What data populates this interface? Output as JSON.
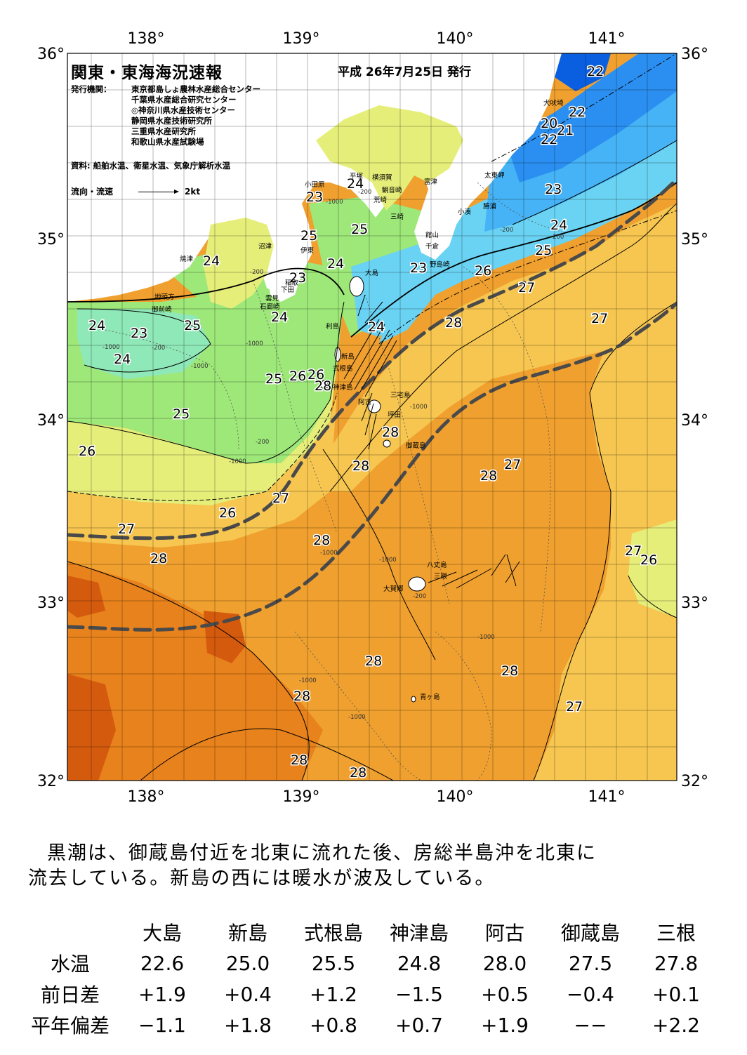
{
  "report": {
    "title": "関東・東海海況速報",
    "date": "平成 26年7月25日 発行",
    "publisher_heading": "発行機関：",
    "publishers": [
      "東京都島しょ農林水産総合センター",
      "千葉県水産総合研究センター",
      "◎神奈川県水産技術センター",
      "静岡県水産技術研究所",
      "三重県水産研究所",
      "和歌山県水産試験場"
    ],
    "source": "資料: 船舶水温、衛星水温、気象庁解析水温",
    "flow_legend_label": "流向・流速",
    "flow_legend_scale": "2kt"
  },
  "axes": {
    "lon_labels": [
      "138°",
      "139°",
      "140°",
      "141°"
    ],
    "lat_labels": [
      "36°",
      "35°",
      "34°",
      "33°",
      "32°"
    ]
  },
  "map_labels": {
    "temperatures": [
      "22",
      "22",
      "20",
      "21",
      "22",
      "23",
      "24",
      "25",
      "23",
      "24",
      "25",
      "23",
      "25",
      "24",
      "23",
      "24",
      "26",
      "27",
      "28",
      "27",
      "24",
      "23",
      "25",
      "24",
      "24",
      "26",
      "26",
      "25",
      "24",
      "25",
      "26",
      "27",
      "28",
      "28",
      "27",
      "28",
      "27",
      "26",
      "28",
      "28",
      "27",
      "26",
      "28",
      "28",
      "28",
      "28",
      "27",
      "28",
      "28"
    ],
    "places": [
      "犬吠埼",
      "太東岬",
      "勝浦",
      "小湊",
      "富津",
      "横須賀",
      "観音崎",
      "荒崎",
      "三崎",
      "館山",
      "千倉",
      "野島崎",
      "小田原",
      "平塚",
      "沼津",
      "伊東",
      "焼津",
      "稲取",
      "下田",
      "雲見",
      "石廊崎",
      "地頭方",
      "御前崎",
      "大島",
      "利島",
      "新島",
      "式根島",
      "神津島",
      "三宅島",
      "坪田",
      "阿古",
      "御蔵島",
      "八丈島",
      "大賀郷",
      "三根",
      "青ヶ島"
    ],
    "depths": [
      "-200",
      "-1000",
      "-1000",
      "-200",
      "-200",
      "-1000",
      "-200",
      "-1000",
      "-1000",
      "-1000",
      "-1000",
      "-1000",
      "-1000",
      "-200",
      "-1000",
      "-200",
      "-1000",
      "-200"
    ]
  },
  "colors": {
    "t20": "#0a5fe0",
    "t21": "#2a8ff0",
    "t22": "#45b3f5",
    "t23": "#6ad3f3",
    "t24": "#8fe8b8",
    "t25": "#9ee87a",
    "t26": "#e6ee7a",
    "t27": "#f6c650",
    "t28": "#f0a02f",
    "t29": "#e8821c",
    "t30": "#d45a0e",
    "land": "#ffffff",
    "kuroshio_axis": "#4a4a4a"
  },
  "summary": {
    "line1": "黒潮は、御蔵島付近を北東に流れた後、房総半島沖を北東に",
    "line2": "流去している。新島の西には暖水が波及している。"
  },
  "table": {
    "columns": [
      "大島",
      "新島",
      "式根島",
      "神津島",
      "阿古",
      "御蔵島",
      "三根"
    ],
    "rows": [
      {
        "label": "水温",
        "values": [
          "22.6",
          "25.0",
          "25.5",
          "24.8",
          "28.0",
          "27.5",
          "27.8"
        ]
      },
      {
        "label": "前日差",
        "values": [
          "+1.9",
          "+0.4",
          "+1.2",
          "−1.5",
          "+0.5",
          "−0.4",
          "+0.1"
        ]
      },
      {
        "label": "平年偏差",
        "values": [
          "−1.1",
          "+1.8",
          "+0.8",
          "+0.7",
          "+1.9",
          "−−",
          "+2.2"
        ]
      }
    ]
  }
}
